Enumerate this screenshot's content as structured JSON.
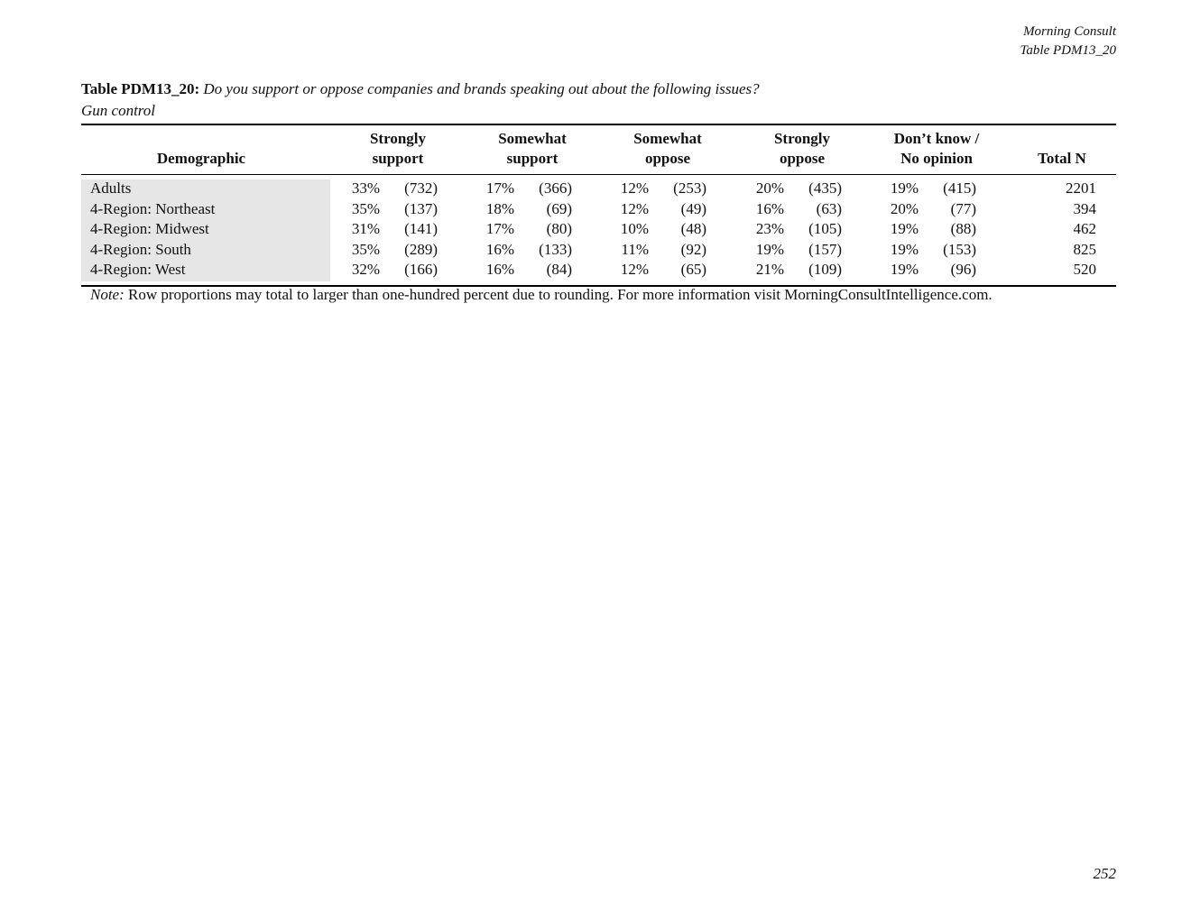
{
  "header": {
    "org": "Morning Consult",
    "table_id": "Table PDM13_20"
  },
  "title": {
    "label": "Table PDM13_20:",
    "question": "Do you support or oppose companies and brands speaking out about the following issues?",
    "subtitle": "Gun control"
  },
  "table": {
    "columns": [
      [
        "Demographic"
      ],
      [
        "Strongly",
        "support"
      ],
      [
        "Somewhat",
        "support"
      ],
      [
        "Somewhat",
        "oppose"
      ],
      [
        "Strongly",
        "oppose"
      ],
      [
        "Don’t know /",
        "No opinion"
      ],
      [
        "Total N"
      ]
    ],
    "rows": [
      [
        "Adults",
        "33%",
        "(732)",
        "17%",
        "(366)",
        "12%",
        "(253)",
        "20%",
        "(435)",
        "19%",
        "(415)",
        "2201"
      ],
      [
        "4-Region: Northeast",
        "35%",
        "(137)",
        "18%",
        "(69)",
        "12%",
        "(49)",
        "16%",
        "(63)",
        "20%",
        "(77)",
        "394"
      ],
      [
        "4-Region: Midwest",
        "31%",
        "(141)",
        "17%",
        "(80)",
        "10%",
        "(48)",
        "23%",
        "(105)",
        "19%",
        "(88)",
        "462"
      ],
      [
        "4-Region: South",
        "35%",
        "(289)",
        "16%",
        "(133)",
        "11%",
        "(92)",
        "19%",
        "(157)",
        "19%",
        "(153)",
        "825"
      ],
      [
        "4-Region: West",
        "32%",
        "(166)",
        "16%",
        "(84)",
        "12%",
        "(65)",
        "21%",
        "(109)",
        "19%",
        "(96)",
        "520"
      ]
    ]
  },
  "note": {
    "label": "Note:",
    "text": "Row proportions may total to larger than one-hundred percent due to rounding. For more information visit MorningConsultIntelligence.com."
  },
  "page_number": "252"
}
